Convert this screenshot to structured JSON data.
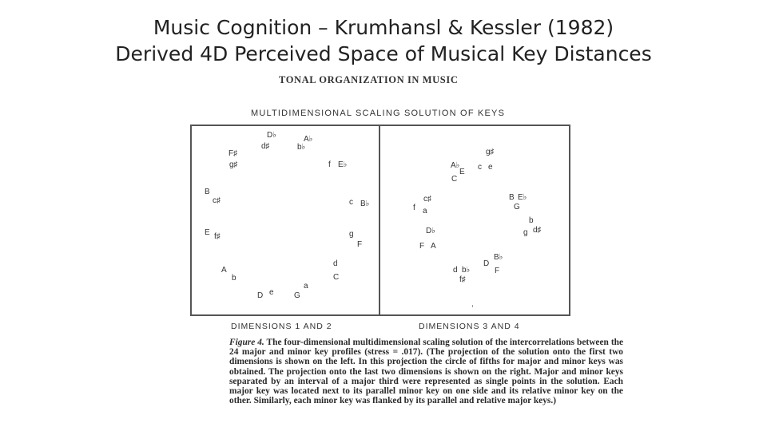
{
  "slide": {
    "title_line1": "Music Cognition – Krumhansl & Kessler (1982)",
    "title_line2": "Derived 4D Perceived Space of Musical Key Distances"
  },
  "figure": {
    "header": "TONAL ORGANIZATION IN MUSIC",
    "heading": "MULTIDIMENSIONAL  SCALING  SOLUTION  OF  KEYS",
    "left_panel_label": "DIMENSIONS  1  AND  2",
    "right_panel_label": "DIMENSIONS  3  AND  4",
    "left_keys": [
      "D♭",
      "A♭",
      "d♯",
      "b♭",
      "F♯",
      "g♯",
      "f",
      "E♭",
      "B",
      "c♯",
      "c",
      "B♭",
      "E",
      "f♯",
      "g",
      "F",
      "d",
      "C",
      "A",
      "b",
      "D",
      "e",
      "G",
      "a"
    ],
    "right_keys": [
      "g♯",
      "A♭",
      "E",
      "c",
      "e",
      "C",
      "B",
      "E♭",
      "G",
      "c♯",
      "f",
      "a",
      "b",
      "g",
      "d♯",
      "D♭",
      "F",
      "A",
      "d",
      "b♭",
      "D",
      "B♭",
      "f♯",
      "F"
    ],
    "caption_figure": "Figure 4.",
    "caption_text": "The four-dimensional multidimensional scaling solution of the intercorrelations between the 24 major and minor key profiles (stress = .017). (The projection of the solution onto the first two dimensions is shown on the left. In this projection the circle of fifths for major and minor keys was obtained. The projection onto the last two dimensions is shown on the right. Major and minor keys separated by an interval of a major third were represented as single points in the solution. Each major key was located next to its parallel minor key on one side and its relative minor key on the other. Similarly, each minor key was flanked by its parallel and relative major keys.)"
  }
}
